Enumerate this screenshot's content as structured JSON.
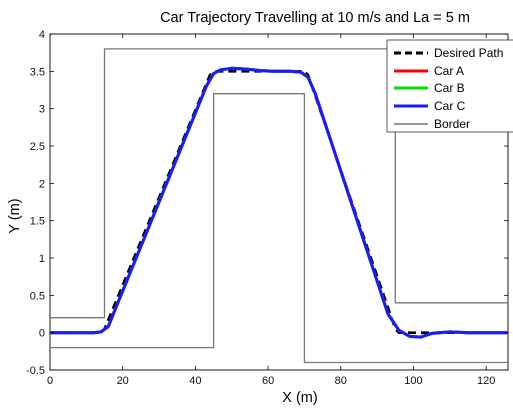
{
  "chart_data": {
    "type": "line",
    "title": "Car Trajectory Travelling at 10 m/s and La = 5 m",
    "xlabel": "X (m)",
    "ylabel": "Y (m)",
    "xlim": [
      0,
      126
    ],
    "ylim": [
      -0.5,
      4
    ],
    "xticks": [
      0,
      20,
      40,
      60,
      80,
      100,
      120
    ],
    "xtick_labels": [
      "0",
      "20",
      "40",
      "60",
      "80",
      "100",
      "120"
    ],
    "yticks": [
      -0.5,
      0,
      0.5,
      1,
      1.5,
      2,
      2.5,
      3,
      3.5,
      4
    ],
    "ytick_labels": [
      "-0.5",
      "0",
      "0.5",
      "1",
      "1.5",
      "2",
      "2.5",
      "3",
      "3.5",
      "4"
    ],
    "grid": false,
    "legend_position": "top-right",
    "series": [
      {
        "name": "Desired Path",
        "color": "#000000",
        "style": "dashed",
        "x": [
          0,
          14,
          15,
          44,
          45,
          70,
          71,
          95,
          96,
          126
        ],
        "y": [
          0,
          0,
          0.05,
          3.45,
          3.5,
          3.5,
          3.45,
          0.05,
          0,
          0
        ]
      },
      {
        "name": "Car A",
        "color": "#ff0000",
        "style": "solid",
        "x": [
          0,
          12,
          14,
          16,
          18,
          43,
          45,
          47,
          50,
          54,
          58,
          62,
          66,
          69,
          71,
          73,
          93,
          96,
          99,
          102,
          105,
          110,
          115,
          126
        ],
        "y": [
          0,
          0,
          0.01,
          0.08,
          0.32,
          3.3,
          3.47,
          3.52,
          3.54,
          3.53,
          3.51,
          3.5,
          3.5,
          3.49,
          3.42,
          3.2,
          0.25,
          0.03,
          -0.05,
          -0.06,
          -0.01,
          0.01,
          0.0,
          0
        ]
      },
      {
        "name": "Car B",
        "color": "#00dd00",
        "style": "solid",
        "x": [
          0,
          12,
          14,
          16,
          18,
          43,
          45,
          47,
          50,
          54,
          58,
          62,
          66,
          69,
          71,
          73,
          93,
          96,
          99,
          102,
          105,
          110,
          115,
          126
        ],
        "y": [
          0,
          0,
          0.01,
          0.08,
          0.32,
          3.3,
          3.47,
          3.52,
          3.54,
          3.53,
          3.51,
          3.5,
          3.5,
          3.49,
          3.42,
          3.2,
          0.25,
          0.03,
          -0.05,
          -0.06,
          -0.01,
          0.01,
          0.0,
          0
        ]
      },
      {
        "name": "Car C",
        "color": "#1a1aff",
        "style": "solid",
        "x": [
          0,
          12,
          14,
          16,
          18,
          43,
          45,
          47,
          50,
          54,
          58,
          62,
          66,
          69,
          71,
          73,
          93,
          96,
          99,
          102,
          105,
          110,
          115,
          126
        ],
        "y": [
          0,
          0,
          0.01,
          0.08,
          0.32,
          3.3,
          3.47,
          3.52,
          3.54,
          3.53,
          3.51,
          3.5,
          3.5,
          3.49,
          3.42,
          3.2,
          0.25,
          0.03,
          -0.05,
          -0.06,
          -0.01,
          0.01,
          0.0,
          0
        ]
      },
      {
        "name": "Border",
        "color": "#777777",
        "style": "solid",
        "segments": [
          {
            "x": [
              0,
              15,
              15,
              95,
              95,
              126
            ],
            "y": [
              0.2,
              0.2,
              3.8,
              3.8,
              0.4,
              0.4
            ]
          },
          {
            "x": [
              0,
              45,
              45,
              70,
              70,
              126
            ],
            "y": [
              -0.2,
              -0.2,
              3.2,
              3.2,
              -0.4,
              -0.4
            ]
          }
        ]
      }
    ]
  }
}
